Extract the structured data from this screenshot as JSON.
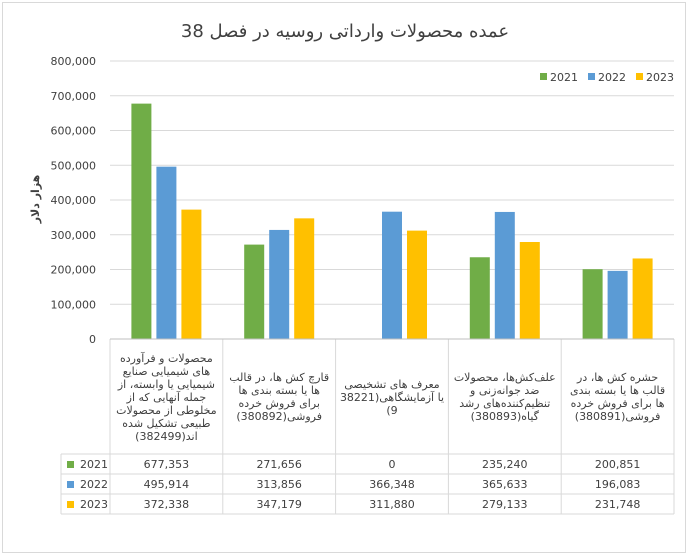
{
  "chart_data": {
    "type": "bar",
    "title": "عمده محصولات وارداتی روسیه در فصل 38",
    "ylabel": "هزار دلار",
    "xlabel": "",
    "ylim": [
      0,
      800000
    ],
    "yticks": [
      "0",
      "100,000",
      "200,000",
      "300,000",
      "400,000",
      "500,000",
      "600,000",
      "700,000",
      "800,000"
    ],
    "ytick_values": [
      0,
      100000,
      200000,
      300000,
      400000,
      500000,
      600000,
      700000,
      800000
    ],
    "grid": true,
    "legend_position": "top-right",
    "categories": [
      "محصولات و فرآورده های شیمیایی صنایع شیمیایی یا وابسته، از جمله آنهایی که از مخلوطی از محصولات طبیعی تشکیل شده اند(382499)",
      "قارچ کش ها، در قالب ها یا بسته بندی ها برای فروش خرده فروشی(380892)",
      "معرف های تشخیصی یا آزمایشگاهی(38221 9)",
      "علف‌کش‌ها، محصولات ضد جوانه‌زنی و تنظیم‌کننده‌های رشد گیاه(380893)",
      "حشره کش ها، در قالب ها یا بسته بندی ها برای فروش خرده فروشی(380891)"
    ],
    "series": [
      {
        "name": "2021",
        "color": "#70ad47",
        "values": [
          677353,
          271656,
          0,
          235240,
          200851
        ],
        "labels": [
          "677,353",
          "271,656",
          "0",
          "235,240",
          "200,851"
        ]
      },
      {
        "name": "2022",
        "color": "#5b9bd5",
        "values": [
          495914,
          313856,
          366348,
          365633,
          196083
        ],
        "labels": [
          "495,914",
          "313,856",
          "366,348",
          "365,633",
          "196,083"
        ]
      },
      {
        "name": "2023",
        "color": "#ffc000",
        "values": [
          372338,
          347179,
          311880,
          279133,
          231748
        ],
        "labels": [
          "372,338",
          "347,179",
          "311,880",
          "279,133",
          "231,748"
        ]
      }
    ]
  }
}
